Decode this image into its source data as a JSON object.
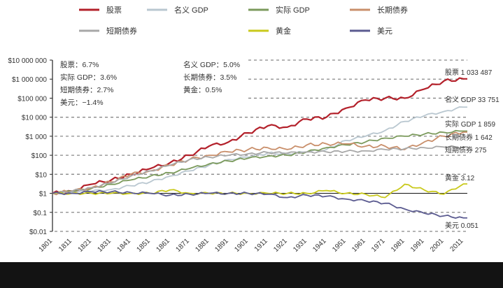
{
  "chart_data": {
    "type": "line",
    "title": "",
    "xlabel": "",
    "ylabel": "",
    "yscale": "log",
    "ylim": [
      0.01,
      10000000
    ],
    "xlim": [
      1801,
      2013
    ],
    "x": [
      1801,
      1811,
      1821,
      1831,
      1841,
      1851,
      1861,
      1871,
      1881,
      1891,
      1901,
      1911,
      1921,
      1931,
      1941,
      1951,
      1961,
      1971,
      1981,
      1991,
      2001,
      2011
    ],
    "x_tick_labels": [
      "1801",
      "1811",
      "1821",
      "1831",
      "1841",
      "1851",
      "1861",
      "1871",
      "1881",
      "1891",
      "1901",
      "1911",
      "1921",
      "1931",
      "1941",
      "1951",
      "1961",
      "1971",
      "1981",
      "1991",
      "2001",
      "2011"
    ],
    "y_ticks": [
      10000000,
      1000000,
      100000,
      10000,
      1000,
      100,
      10,
      1,
      0.1,
      0.01
    ],
    "y_tick_labels": [
      "$10 000 000",
      "$1 000 000",
      "$100 000",
      "$10 000",
      "$1 000",
      "$100",
      "$10",
      "$1",
      "$0.1",
      "$0.01"
    ],
    "legend_placement": "top",
    "series": [
      {
        "name": "股票",
        "color": "#b3202a",
        "end_label": "股票 1 033 487",
        "values": [
          1,
          1.3,
          3,
          5,
          10,
          20,
          40,
          100,
          300,
          500,
          1500,
          3500,
          3000,
          8000,
          10000,
          30000,
          80000,
          100000,
          100000,
          300000,
          800000,
          1033487
        ]
      },
      {
        "name": "名义 GDP",
        "color": "#b9c7d0",
        "end_label": "名义 GDP 33 751",
        "values": [
          1,
          1.2,
          1.3,
          1.6,
          2.5,
          4,
          8,
          15,
          30,
          60,
          80,
          130,
          120,
          150,
          200,
          600,
          1000,
          2000,
          6000,
          12000,
          20000,
          33751
        ]
      },
      {
        "name": "实际 GDP",
        "color": "#7b9a5c",
        "end_label": "实际 GDP 1 859",
        "values": [
          1,
          1.3,
          1.8,
          3,
          5,
          8,
          12,
          20,
          35,
          50,
          70,
          90,
          100,
          150,
          250,
          350,
          500,
          800,
          1000,
          1300,
          1600,
          1859
        ]
      },
      {
        "name": "长期债券",
        "color": "#c98f6b",
        "end_label": "长期债券 1 642",
        "values": [
          1,
          1.3,
          2,
          4,
          10,
          15,
          30,
          60,
          100,
          150,
          200,
          250,
          200,
          350,
          400,
          400,
          300,
          300,
          200,
          500,
          1000,
          1642
        ]
      },
      {
        "name": "短期债券",
        "color": "#a8a8a8",
        "end_label": "短期债券 275",
        "values": [
          1,
          1.3,
          2,
          3.5,
          8,
          15,
          30,
          60,
          80,
          100,
          120,
          140,
          130,
          150,
          150,
          160,
          170,
          200,
          220,
          250,
          270,
          275
        ]
      },
      {
        "name": "黄金",
        "color": "#c9c91c",
        "end_label": "黄金 3.12",
        "values": [
          1,
          1,
          1,
          1,
          1,
          1,
          1.5,
          1,
          1,
          1,
          1,
          1,
          1,
          1,
          1.4,
          1,
          0.9,
          0.6,
          3,
          1.5,
          0.9,
          3.12
        ]
      },
      {
        "name": "美元",
        "color": "#5b5b90",
        "end_label": "美元 0.051",
        "values": [
          1,
          1,
          1.2,
          1.2,
          1.1,
          1,
          0.8,
          0.9,
          1,
          1,
          1,
          0.9,
          0.6,
          0.8,
          0.7,
          0.5,
          0.4,
          0.3,
          0.15,
          0.09,
          0.065,
          0.051
        ]
      }
    ],
    "annotations": [
      "股票：6.7%",
      "实际 GDP：3.6%",
      "短期债券：2.7%",
      "美元：−1.4%",
      "名义 GDP：5.0%",
      "长期债券：3.5%",
      "黄金：0.5%"
    ]
  }
}
